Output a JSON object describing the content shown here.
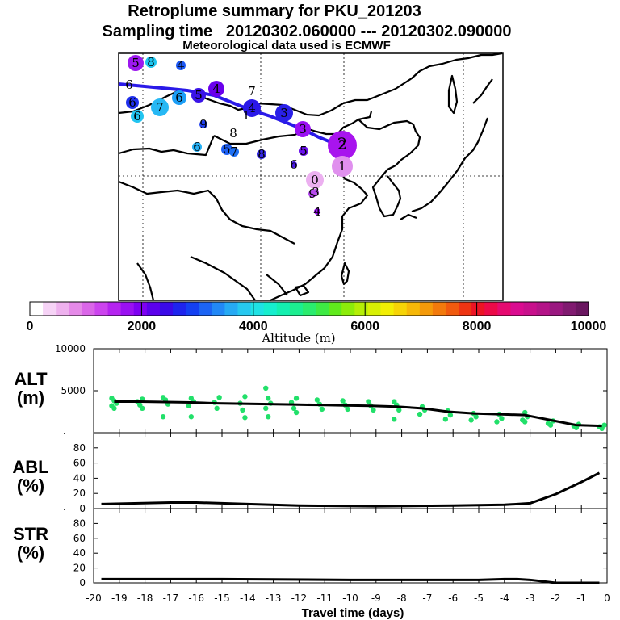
{
  "header": {
    "title": "Retroplume summary for PKU_201203",
    "sampling": "Sampling time   20120302.060000 --- 20120302.090000",
    "meteo": "Meteorological data used is ECMWF"
  },
  "colors": {
    "path": "#2a1ae8",
    "green": "#22e06a",
    "line": "#000000"
  },
  "colorbar": {
    "label": "Altitude (m)",
    "ticks": [
      "0",
      "2000",
      "4000",
      "6000",
      "8000",
      "10000"
    ],
    "colors": [
      "#ffffff",
      "#f6d3f6",
      "#eeb1ee",
      "#e58ae8",
      "#da66e8",
      "#cc44ee",
      "#b524f0",
      "#9a10f2",
      "#7e00f2",
      "#5c00ec",
      "#3a0ae8",
      "#1e24ee",
      "#1440f2",
      "#1c64f4",
      "#2288f6",
      "#26aaf4",
      "#26c8f0",
      "#1ee2e4",
      "#16eece",
      "#14f0b0",
      "#1cee90",
      "#2aec6e",
      "#3eea44",
      "#60ea1c",
      "#8cec0a",
      "#b4ee06",
      "#d8f004",
      "#f2ee04",
      "#f6d406",
      "#f6b808",
      "#f49a0a",
      "#f27a0c",
      "#f05a0e",
      "#ee3412",
      "#ec1424",
      "#ec0a48",
      "#e60a70",
      "#da0c90",
      "#c8108c",
      "#b41488",
      "#9a1880",
      "#801a70",
      "#6a1660"
    ]
  },
  "map": {
    "points": [
      {
        "label": "5",
        "color": "#9c18ee"
      },
      {
        "label": "8",
        "color": "#1ec6f0"
      },
      {
        "label": "4",
        "color": "#1c58f4"
      },
      {
        "label": "6",
        "color": "#ffffff"
      },
      {
        "label": "5",
        "color": "#3a14e8"
      },
      {
        "label": "4",
        "color": "#6a00ec"
      },
      {
        "label": "7",
        "color": "#ffffff"
      },
      {
        "label": "6",
        "color": "#1c9ef6"
      },
      {
        "label": "6",
        "color": "#2030ee"
      },
      {
        "label": "7",
        "color": "#26b8f4"
      },
      {
        "label": "6",
        "color": "#22c4f0"
      },
      {
        "label": "4",
        "color": "#2a18e8"
      },
      {
        "label": "1",
        "color": "#ffffff"
      },
      {
        "label": "3",
        "color": "#2a20e8"
      },
      {
        "label": "9",
        "color": "#2040f0"
      },
      {
        "label": "8",
        "color": "#ffffff"
      },
      {
        "label": "3",
        "color": "#9a10f2"
      },
      {
        "label": "6",
        "color": "#26b0f4"
      },
      {
        "label": "5",
        "color": "#1e60f4"
      },
      {
        "label": "7",
        "color": "#1e70f4"
      },
      {
        "label": "8",
        "color": "#3428e8"
      },
      {
        "label": "5",
        "color": "#6a10ec"
      },
      {
        "label": "2",
        "color": "#a814ee"
      },
      {
        "label": "2",
        "color": "#a814ee"
      },
      {
        "label": "6",
        "color": "#4a18e8"
      },
      {
        "label": "1",
        "color": "#e090ee"
      },
      {
        "label": "0",
        "color": "#ecb0f0"
      },
      {
        "label": "9",
        "color": "#b040ee"
      },
      {
        "label": "3",
        "color": "#b84cee"
      },
      {
        "label": "4",
        "color": "#9a10f2"
      }
    ]
  },
  "panels": {
    "alt": {
      "label1": "ALT",
      "label2": "(m)"
    },
    "abl": {
      "label1": "ABL",
      "label2": "(%)"
    },
    "str": {
      "label1": "STR",
      "label2": "(%)"
    }
  },
  "xaxis": {
    "label": "Travel time (days)"
  },
  "chart_data": [
    {
      "type": "line",
      "name": "ALT",
      "title": "ALT (m)",
      "xlabel": "Travel time (days)",
      "ylabel": "ALT (m)",
      "xlim": [
        -20,
        0
      ],
      "ylim": [
        0,
        10000
      ],
      "yticks": [
        5000,
        10000
      ],
      "x": [
        -19.2,
        -18.2,
        -17.2,
        -16.2,
        -15.2,
        -14.2,
        -13.2,
        -12.2,
        -11.2,
        -10.2,
        -9.2,
        -8.2,
        -7.2,
        -6.2,
        -5.2,
        -4.2,
        -3.2,
        -2.2,
        -1.2,
        -0.2
      ],
      "values": [
        3700,
        3700,
        3650,
        3600,
        3500,
        3450,
        3400,
        3350,
        3300,
        3250,
        3200,
        3100,
        2900,
        2500,
        2300,
        2200,
        2100,
        1500,
        900,
        800
      ],
      "scatter": {
        "name": "particles",
        "x": [
          -19.2,
          -19.2,
          -19.2,
          -19.2,
          -19.2,
          -18.2,
          -18.2,
          -18.2,
          -18.2,
          -17.2,
          -17.2,
          -17.2,
          -17.2,
          -16.2,
          -16.2,
          -16.2,
          -16.2,
          -15.2,
          -15.2,
          -15.2,
          -14.2,
          -14.2,
          -14.2,
          -14.2,
          -13.2,
          -13.2,
          -13.2,
          -13.2,
          -13.2,
          -12.2,
          -12.2,
          -12.2,
          -12.2,
          -11.2,
          -11.2,
          -11.2,
          -10.2,
          -10.2,
          -10.2,
          -9.2,
          -9.2,
          -9.2,
          -8.2,
          -8.2,
          -8.2,
          -8.2,
          -7.2,
          -7.2,
          -7.2,
          -6.2,
          -6.2,
          -6.2,
          -5.2,
          -5.2,
          -5.2,
          -4.2,
          -4.2,
          -4.2,
          -3.2,
          -3.2,
          -3.2,
          -3.2,
          -2.2,
          -2.2,
          -2.2,
          -1.2,
          -1.2,
          -1.2,
          -0.2,
          -0.2,
          -0.2
        ],
        "y": [
          4100,
          3800,
          3500,
          3200,
          2900,
          4000,
          3700,
          3300,
          2900,
          4200,
          3900,
          3400,
          1900,
          4100,
          3700,
          3200,
          1900,
          4200,
          3600,
          2900,
          4300,
          3500,
          2700,
          1800,
          5300,
          4100,
          3500,
          2900,
          1900,
          4100,
          3600,
          2900,
          2400,
          3900,
          3400,
          2800,
          3800,
          3300,
          2800,
          3700,
          3200,
          2700,
          3700,
          3300,
          2700,
          1600,
          3100,
          2700,
          2200,
          2600,
          2100,
          1600,
          2300,
          1900,
          1500,
          2200,
          1700,
          1300,
          2400,
          1900,
          1500,
          1300,
          1400,
          1100,
          900,
          1000,
          800,
          600,
          900,
          700,
          500
        ]
      }
    },
    {
      "type": "line",
      "name": "ABL",
      "title": "ABL (%)",
      "xlabel": "Travel time (days)",
      "ylabel": "ABL (%)",
      "xlim": [
        -20,
        0
      ],
      "ylim": [
        0,
        100
      ],
      "yticks": [
        0,
        20,
        40,
        60,
        80
      ],
      "x": [
        -19.7,
        -17,
        -16,
        -14,
        -12,
        -9,
        -6,
        -4,
        -3,
        -2.5,
        -2,
        -1,
        -0.3
      ],
      "values": [
        6,
        8,
        8,
        6,
        4,
        3,
        4,
        5,
        7,
        13,
        19,
        35,
        47
      ]
    },
    {
      "type": "line",
      "name": "STR",
      "title": "STR (%)",
      "xlabel": "Travel time (days)",
      "ylabel": "STR (%)",
      "xlim": [
        -20,
        0
      ],
      "ylim": [
        0,
        100
      ],
      "yticks": [
        0,
        20,
        40,
        60,
        80
      ],
      "xticks": [
        "-20",
        "-19",
        "-18",
        "-17",
        "-16",
        "-15",
        "-14",
        "-13",
        "-12",
        "-11",
        "-10",
        "-9",
        "-8",
        "-7",
        "-6",
        "-5",
        "-4",
        "-3",
        "-2",
        "-1",
        "0"
      ],
      "x": [
        -19.7,
        -15,
        -10,
        -8,
        -6,
        -5,
        -4,
        -3.5,
        -3,
        -2.5,
        -2,
        -0.3
      ],
      "values": [
        5,
        5,
        4,
        4,
        4,
        4,
        5,
        5,
        4,
        2,
        0,
        0
      ]
    }
  ]
}
